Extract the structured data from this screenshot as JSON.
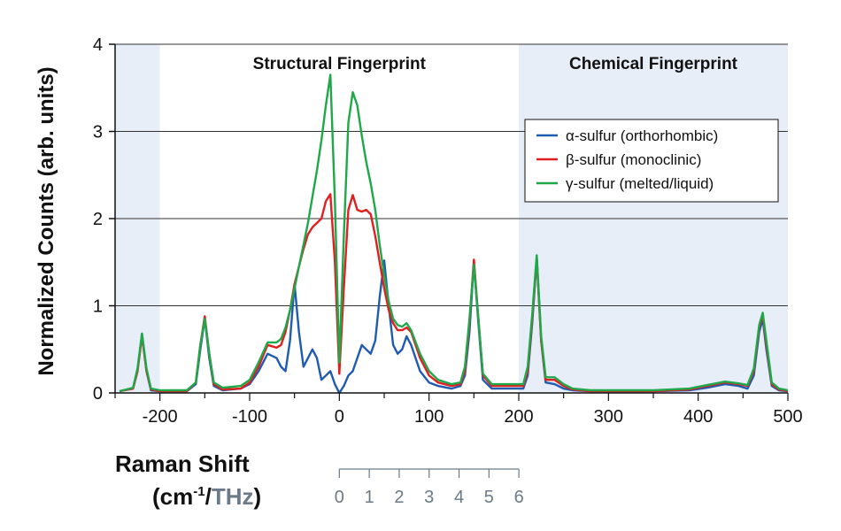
{
  "chart_data": {
    "type": "line",
    "title": "",
    "ylabel": "Normalized Counts (arb. units)",
    "xlabel_line1": "Raman Shift",
    "xlabel_unit_prefix": "(cm",
    "xlabel_unit_sup": "-1",
    "xlabel_unit_sep": "/",
    "xlabel_unit_thz": "THz",
    "xlabel_unit_close": ")",
    "xlim": [
      -250,
      500
    ],
    "ylim": [
      0,
      4
    ],
    "x_ticks": [
      -200,
      -100,
      0,
      100,
      200,
      300,
      400,
      500
    ],
    "y_ticks": [
      0,
      1,
      2,
      3,
      4
    ],
    "grid_y": true,
    "secondary_axis": {
      "label": "THz",
      "ticks": [
        0,
        1,
        2,
        3,
        4,
        5,
        6
      ],
      "cm_per_thz": 33.356
    },
    "regions": [
      {
        "label": "",
        "x_range": [
          -250,
          -200
        ],
        "color": "#e8eef8"
      },
      {
        "label": "Structural Fingerprint",
        "x_range": [
          -200,
          200
        ],
        "color": "#ffffff"
      },
      {
        "label": "Chemical Fingerprint",
        "x_range": [
          200,
          500
        ],
        "color": "#e8eef8"
      }
    ],
    "legend_position": "top-right",
    "series": [
      {
        "name": "α-sulfur (orthorhombic)",
        "color": "#1f5bb0",
        "points": [
          [
            -245,
            0.02
          ],
          [
            -230,
            0.05
          ],
          [
            -225,
            0.25
          ],
          [
            -220,
            0.68
          ],
          [
            -215,
            0.25
          ],
          [
            -210,
            0.03
          ],
          [
            -200,
            0.02
          ],
          [
            -170,
            0.02
          ],
          [
            -160,
            0.1
          ],
          [
            -155,
            0.5
          ],
          [
            -150,
            0.85
          ],
          [
            -145,
            0.4
          ],
          [
            -140,
            0.08
          ],
          [
            -130,
            0.03
          ],
          [
            -110,
            0.05
          ],
          [
            -100,
            0.1
          ],
          [
            -90,
            0.25
          ],
          [
            -80,
            0.45
          ],
          [
            -70,
            0.4
          ],
          [
            -65,
            0.3
          ],
          [
            -60,
            0.25
          ],
          [
            -55,
            0.6
          ],
          [
            -50,
            1.25
          ],
          [
            -45,
            0.7
          ],
          [
            -40,
            0.3
          ],
          [
            -35,
            0.4
          ],
          [
            -30,
            0.5
          ],
          [
            -25,
            0.4
          ],
          [
            -20,
            0.15
          ],
          [
            -15,
            0.2
          ],
          [
            -10,
            0.25
          ],
          [
            -5,
            0.1
          ],
          [
            0,
            0.0
          ],
          [
            5,
            0.08
          ],
          [
            10,
            0.2
          ],
          [
            15,
            0.25
          ],
          [
            20,
            0.4
          ],
          [
            25,
            0.55
          ],
          [
            30,
            0.5
          ],
          [
            35,
            0.45
          ],
          [
            40,
            0.6
          ],
          [
            45,
            1.1
          ],
          [
            50,
            1.52
          ],
          [
            55,
            1.0
          ],
          [
            60,
            0.55
          ],
          [
            65,
            0.45
          ],
          [
            70,
            0.5
          ],
          [
            75,
            0.65
          ],
          [
            80,
            0.55
          ],
          [
            90,
            0.25
          ],
          [
            100,
            0.12
          ],
          [
            110,
            0.08
          ],
          [
            125,
            0.05
          ],
          [
            135,
            0.08
          ],
          [
            140,
            0.2
          ],
          [
            145,
            0.7
          ],
          [
            150,
            1.5
          ],
          [
            155,
            0.8
          ],
          [
            160,
            0.15
          ],
          [
            170,
            0.05
          ],
          [
            190,
            0.05
          ],
          [
            205,
            0.05
          ],
          [
            210,
            0.2
          ],
          [
            215,
            0.8
          ],
          [
            220,
            1.55
          ],
          [
            225,
            0.6
          ],
          [
            230,
            0.12
          ],
          [
            240,
            0.1
          ],
          [
            250,
            0.05
          ],
          [
            260,
            0.03
          ],
          [
            280,
            0.02
          ],
          [
            300,
            0.02
          ],
          [
            350,
            0.02
          ],
          [
            390,
            0.03
          ],
          [
            410,
            0.06
          ],
          [
            430,
            0.1
          ],
          [
            445,
            0.08
          ],
          [
            455,
            0.05
          ],
          [
            462,
            0.2
          ],
          [
            468,
            0.7
          ],
          [
            472,
            0.85
          ],
          [
            476,
            0.5
          ],
          [
            482,
            0.08
          ],
          [
            490,
            0.03
          ],
          [
            500,
            0.02
          ]
        ]
      },
      {
        "name": "β-sulfur (monoclinic)",
        "color": "#e02020",
        "points": [
          [
            -245,
            0.02
          ],
          [
            -230,
            0.05
          ],
          [
            -225,
            0.25
          ],
          [
            -220,
            0.65
          ],
          [
            -215,
            0.25
          ],
          [
            -210,
            0.04
          ],
          [
            -200,
            0.02
          ],
          [
            -170,
            0.02
          ],
          [
            -160,
            0.12
          ],
          [
            -155,
            0.55
          ],
          [
            -150,
            0.88
          ],
          [
            -145,
            0.45
          ],
          [
            -140,
            0.1
          ],
          [
            -130,
            0.04
          ],
          [
            -110,
            0.05
          ],
          [
            -100,
            0.12
          ],
          [
            -90,
            0.3
          ],
          [
            -80,
            0.55
          ],
          [
            -70,
            0.52
          ],
          [
            -65,
            0.55
          ],
          [
            -60,
            0.7
          ],
          [
            -55,
            0.95
          ],
          [
            -50,
            1.25
          ],
          [
            -45,
            1.45
          ],
          [
            -40,
            1.65
          ],
          [
            -35,
            1.82
          ],
          [
            -30,
            1.9
          ],
          [
            -25,
            1.95
          ],
          [
            -20,
            2.0
          ],
          [
            -15,
            2.2
          ],
          [
            -10,
            2.28
          ],
          [
            -5,
            1.5
          ],
          [
            0,
            0.22
          ],
          [
            5,
            1.2
          ],
          [
            10,
            2.1
          ],
          [
            15,
            2.27
          ],
          [
            20,
            2.1
          ],
          [
            25,
            2.08
          ],
          [
            30,
            2.1
          ],
          [
            35,
            2.05
          ],
          [
            40,
            1.8
          ],
          [
            45,
            1.5
          ],
          [
            50,
            1.2
          ],
          [
            55,
            0.95
          ],
          [
            60,
            0.8
          ],
          [
            65,
            0.72
          ],
          [
            70,
            0.72
          ],
          [
            75,
            0.75
          ],
          [
            80,
            0.7
          ],
          [
            90,
            0.4
          ],
          [
            100,
            0.2
          ],
          [
            110,
            0.12
          ],
          [
            125,
            0.08
          ],
          [
            135,
            0.1
          ],
          [
            140,
            0.25
          ],
          [
            145,
            0.8
          ],
          [
            150,
            1.53
          ],
          [
            155,
            0.85
          ],
          [
            160,
            0.2
          ],
          [
            170,
            0.08
          ],
          [
            190,
            0.08
          ],
          [
            205,
            0.08
          ],
          [
            210,
            0.25
          ],
          [
            215,
            0.85
          ],
          [
            220,
            1.55
          ],
          [
            225,
            0.6
          ],
          [
            230,
            0.15
          ],
          [
            240,
            0.15
          ],
          [
            250,
            0.08
          ],
          [
            260,
            0.04
          ],
          [
            280,
            0.02
          ],
          [
            300,
            0.02
          ],
          [
            350,
            0.02
          ],
          [
            390,
            0.04
          ],
          [
            410,
            0.08
          ],
          [
            430,
            0.12
          ],
          [
            445,
            0.1
          ],
          [
            455,
            0.08
          ],
          [
            462,
            0.25
          ],
          [
            468,
            0.75
          ],
          [
            472,
            0.9
          ],
          [
            476,
            0.55
          ],
          [
            482,
            0.1
          ],
          [
            490,
            0.04
          ],
          [
            500,
            0.02
          ]
        ]
      },
      {
        "name": "γ-sulfur (melted/liquid)",
        "color": "#1fa84a",
        "points": [
          [
            -245,
            0.02
          ],
          [
            -230,
            0.06
          ],
          [
            -225,
            0.28
          ],
          [
            -220,
            0.68
          ],
          [
            -215,
            0.28
          ],
          [
            -210,
            0.05
          ],
          [
            -200,
            0.03
          ],
          [
            -170,
            0.03
          ],
          [
            -160,
            0.12
          ],
          [
            -155,
            0.55
          ],
          [
            -150,
            0.85
          ],
          [
            -145,
            0.45
          ],
          [
            -140,
            0.12
          ],
          [
            -130,
            0.06
          ],
          [
            -110,
            0.08
          ],
          [
            -100,
            0.15
          ],
          [
            -90,
            0.35
          ],
          [
            -80,
            0.58
          ],
          [
            -70,
            0.58
          ],
          [
            -65,
            0.62
          ],
          [
            -60,
            0.75
          ],
          [
            -55,
            0.95
          ],
          [
            -50,
            1.2
          ],
          [
            -45,
            1.45
          ],
          [
            -40,
            1.7
          ],
          [
            -35,
            1.95
          ],
          [
            -30,
            2.25
          ],
          [
            -25,
            2.55
          ],
          [
            -20,
            2.9
          ],
          [
            -15,
            3.3
          ],
          [
            -10,
            3.65
          ],
          [
            -5,
            2.2
          ],
          [
            0,
            0.35
          ],
          [
            5,
            1.8
          ],
          [
            10,
            3.1
          ],
          [
            15,
            3.45
          ],
          [
            20,
            3.3
          ],
          [
            25,
            2.95
          ],
          [
            30,
            2.65
          ],
          [
            35,
            2.4
          ],
          [
            40,
            2.1
          ],
          [
            45,
            1.7
          ],
          [
            50,
            1.35
          ],
          [
            55,
            1.05
          ],
          [
            60,
            0.85
          ],
          [
            65,
            0.78
          ],
          [
            70,
            0.76
          ],
          [
            75,
            0.8
          ],
          [
            80,
            0.72
          ],
          [
            90,
            0.45
          ],
          [
            100,
            0.25
          ],
          [
            110,
            0.15
          ],
          [
            125,
            0.1
          ],
          [
            135,
            0.12
          ],
          [
            140,
            0.3
          ],
          [
            145,
            0.85
          ],
          [
            150,
            1.47
          ],
          [
            155,
            0.85
          ],
          [
            160,
            0.22
          ],
          [
            170,
            0.1
          ],
          [
            190,
            0.1
          ],
          [
            205,
            0.1
          ],
          [
            210,
            0.3
          ],
          [
            215,
            0.9
          ],
          [
            220,
            1.58
          ],
          [
            225,
            0.65
          ],
          [
            230,
            0.18
          ],
          [
            240,
            0.18
          ],
          [
            250,
            0.1
          ],
          [
            260,
            0.05
          ],
          [
            280,
            0.03
          ],
          [
            300,
            0.03
          ],
          [
            350,
            0.03
          ],
          [
            390,
            0.05
          ],
          [
            410,
            0.09
          ],
          [
            430,
            0.13
          ],
          [
            445,
            0.11
          ],
          [
            455,
            0.09
          ],
          [
            462,
            0.28
          ],
          [
            468,
            0.78
          ],
          [
            472,
            0.92
          ],
          [
            476,
            0.6
          ],
          [
            482,
            0.12
          ],
          [
            490,
            0.05
          ],
          [
            500,
            0.03
          ]
        ]
      }
    ]
  }
}
